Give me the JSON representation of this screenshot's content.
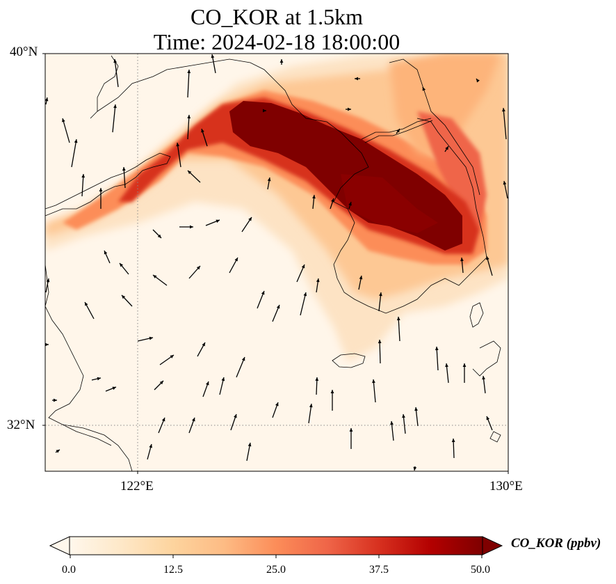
{
  "title": {
    "line1": "CO_KOR at 1.5km",
    "line2": "Time: 2024-02-18 18:00:00"
  },
  "axes": {
    "lat_labels": [
      "40°N",
      "32°N"
    ],
    "lon_labels": [
      "122°E",
      "130°E"
    ],
    "lat_range": [
      31,
      40
    ],
    "lon_range": [
      120,
      130
    ]
  },
  "colorbar": {
    "label": "CO_KOR (ppbv)",
    "ticks": [
      "0.0",
      "12.5",
      "25.0",
      "37.5",
      "50.0"
    ],
    "range": [
      0,
      50
    ],
    "colormap": "OrRd",
    "colors": [
      "#fff7ec",
      "#fee8c8",
      "#fdd49e",
      "#fdbb84",
      "#fc8d59",
      "#ef6548",
      "#d7301f",
      "#b30000",
      "#7f0000"
    ],
    "extend": "both"
  },
  "map": {
    "gridlines": "dotted",
    "wind_vectors": true,
    "coastlines": true
  }
}
